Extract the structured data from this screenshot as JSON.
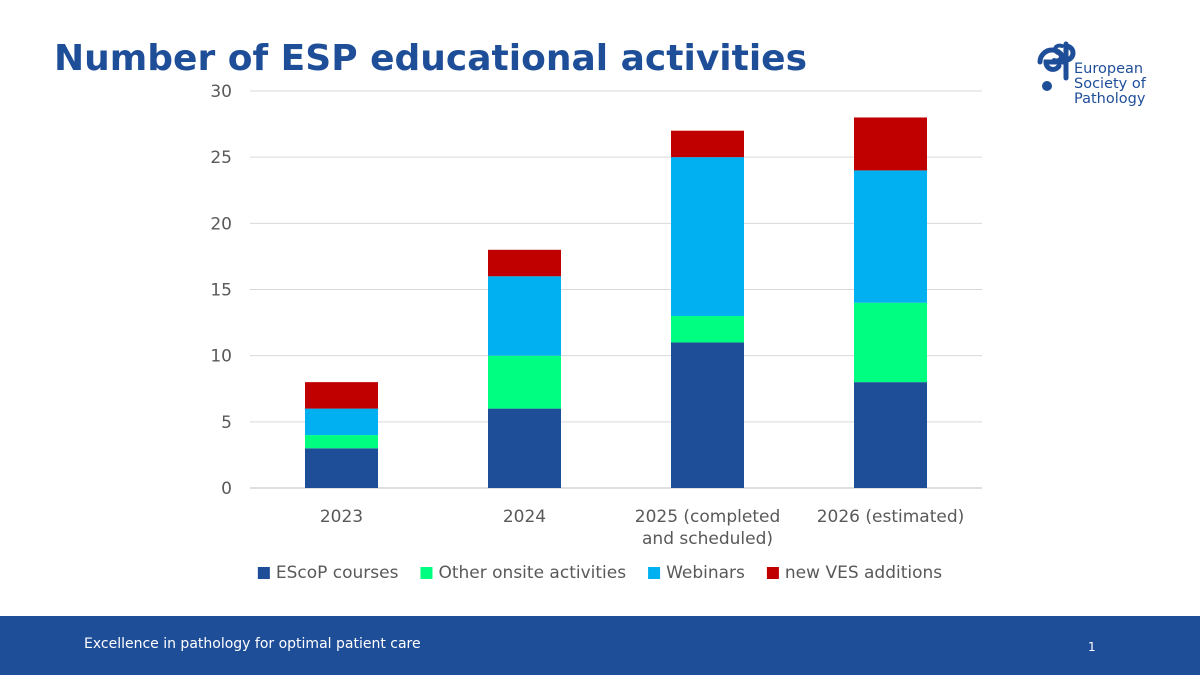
{
  "slide": {
    "title": "Number of ESP educational activities",
    "footer_tagline": "Excellence in pathology for optimal patient care",
    "page_number": "1"
  },
  "logo": {
    "mark_text": "esp",
    "lines": [
      "European",
      "Society of",
      "Pathology"
    ],
    "color": "#1f4e99"
  },
  "chart_data": {
    "type": "bar",
    "stacked": true,
    "categories": [
      "2023",
      "2024",
      "2025 (completed\nand scheduled)",
      "2026 (estimated)"
    ],
    "series": [
      {
        "name": "EScoP courses",
        "color": "#1f4e99",
        "values": [
          3,
          6,
          11,
          8
        ]
      },
      {
        "name": "Other onsite activities",
        "color": "#00ff80",
        "values": [
          1,
          4,
          2,
          6
        ]
      },
      {
        "name": "Webinars",
        "color": "#00b0f0",
        "values": [
          2,
          6,
          12,
          10
        ]
      },
      {
        "name": "new VES additions",
        "color": "#c00000",
        "values": [
          2,
          2,
          2,
          4
        ]
      }
    ],
    "ylim": [
      0,
      30
    ],
    "yticks": [
      0,
      5,
      10,
      15,
      20,
      25,
      30
    ],
    "grid": true,
    "legend": "bottom"
  }
}
